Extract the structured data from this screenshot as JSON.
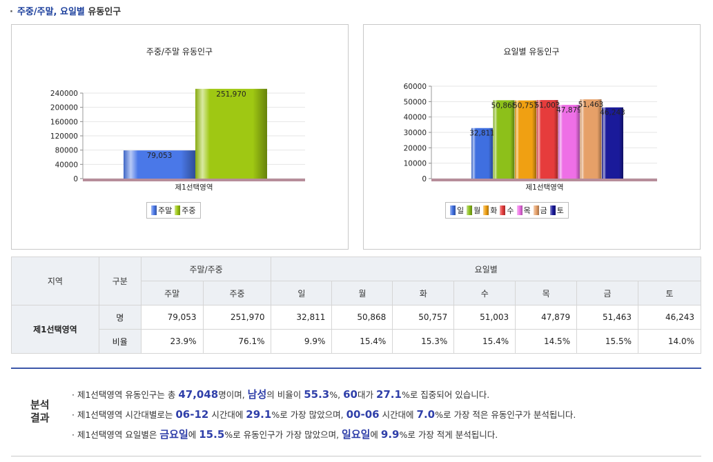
{
  "section_title": {
    "bullet": "·",
    "part1": "주중/주말, 요일별",
    "part2": " 유동인구"
  },
  "chart_data": [
    {
      "type": "bar",
      "title": "주중/주말 유동인구",
      "xlabel": "제1선택영역",
      "categories": [
        "제1선택영역"
      ],
      "series": [
        {
          "name": "주말",
          "values": [
            79053
          ],
          "label": "79,053",
          "color": "#4a78e8"
        },
        {
          "name": "주중",
          "values": [
            251970
          ],
          "label": "251,970",
          "color": "#9fc813"
        }
      ],
      "yticks": [
        "0",
        "40000",
        "80000",
        "120000",
        "160000",
        "200000",
        "240000"
      ],
      "ylim": [
        0,
        240000
      ],
      "legend": "bottom"
    },
    {
      "type": "bar",
      "title": "요일별 유동인구",
      "xlabel": "제1선택영역",
      "categories": [
        "제1선택영역"
      ],
      "series": [
        {
          "name": "일",
          "values": [
            32811
          ],
          "label": "32,811",
          "color": "#3f6fe0"
        },
        {
          "name": "월",
          "values": [
            50868
          ],
          "label": "50,868",
          "color": "#8dc01a"
        },
        {
          "name": "화",
          "values": [
            50757
          ],
          "label": "50,757",
          "color": "#f0a012"
        },
        {
          "name": "수",
          "values": [
            51003
          ],
          "label": "51,003",
          "color": "#e63c3c"
        },
        {
          "name": "목",
          "values": [
            47879
          ],
          "label": "47,879",
          "color": "#ee6fe6"
        },
        {
          "name": "금",
          "values": [
            51463
          ],
          "label": "51,463",
          "color": "#e6a068"
        },
        {
          "name": "토",
          "values": [
            46243
          ],
          "label": "46,243",
          "color": "#1a1a9a"
        }
      ],
      "yticks": [
        "0",
        "10000",
        "20000",
        "30000",
        "40000",
        "50000",
        "60000"
      ],
      "ylim": [
        0,
        60000
      ],
      "legend": "bottom"
    }
  ],
  "table": {
    "h_region": "지역",
    "h_type": "구분",
    "h_weekgroup": "주말/주중",
    "h_daygroup": "요일별",
    "sub_headers": [
      "주말",
      "주중",
      "일",
      "월",
      "화",
      "수",
      "목",
      "금",
      "토"
    ],
    "region": "제1선택영역",
    "row_count_label": "명",
    "row_ratio_label": "비율",
    "counts": [
      "79,053",
      "251,970",
      "32,811",
      "50,868",
      "50,757",
      "51,003",
      "47,879",
      "51,463",
      "46,243"
    ],
    "ratios": [
      "23.9%",
      "76.1%",
      "9.9%",
      "15.4%",
      "15.3%",
      "15.4%",
      "14.5%",
      "15.5%",
      "14.0%"
    ]
  },
  "analysis": {
    "label1": "분석",
    "label2": "결과",
    "l1": {
      "a": "· 제1선택영역 유동인구는 총 ",
      "b1": "47,048",
      "c": "명이며, ",
      "b2": "남성",
      "d": "의 비율이 ",
      "b3": "55.3",
      "e": "%, ",
      "b4": "60",
      "f": "대가 ",
      "b5": "27.1",
      "g": "%로 집중되어 있습니다."
    },
    "l2": {
      "a": "· 제1선택영역 시간대별로는 ",
      "b1": "06-12",
      "c": " 시간대에 ",
      "b2": "29.1",
      "d": "%로 가장 많았으며, ",
      "b3": "00-06",
      "e": " 시간대에 ",
      "b4": "7.0",
      "f": "%로 가장 적은 유동인구가 분석됩니다."
    },
    "l3": {
      "a": "· 제1선택영역 요일별은 ",
      "b1": "금요일",
      "c": "에 ",
      "b2": "15.5",
      "d": "%로 유동인구가 가장 많았으며, ",
      "b3": "일요일",
      "e": "에 ",
      "b4": "9.9",
      "f": "%로 가장 적게 분석됩니다."
    }
  }
}
